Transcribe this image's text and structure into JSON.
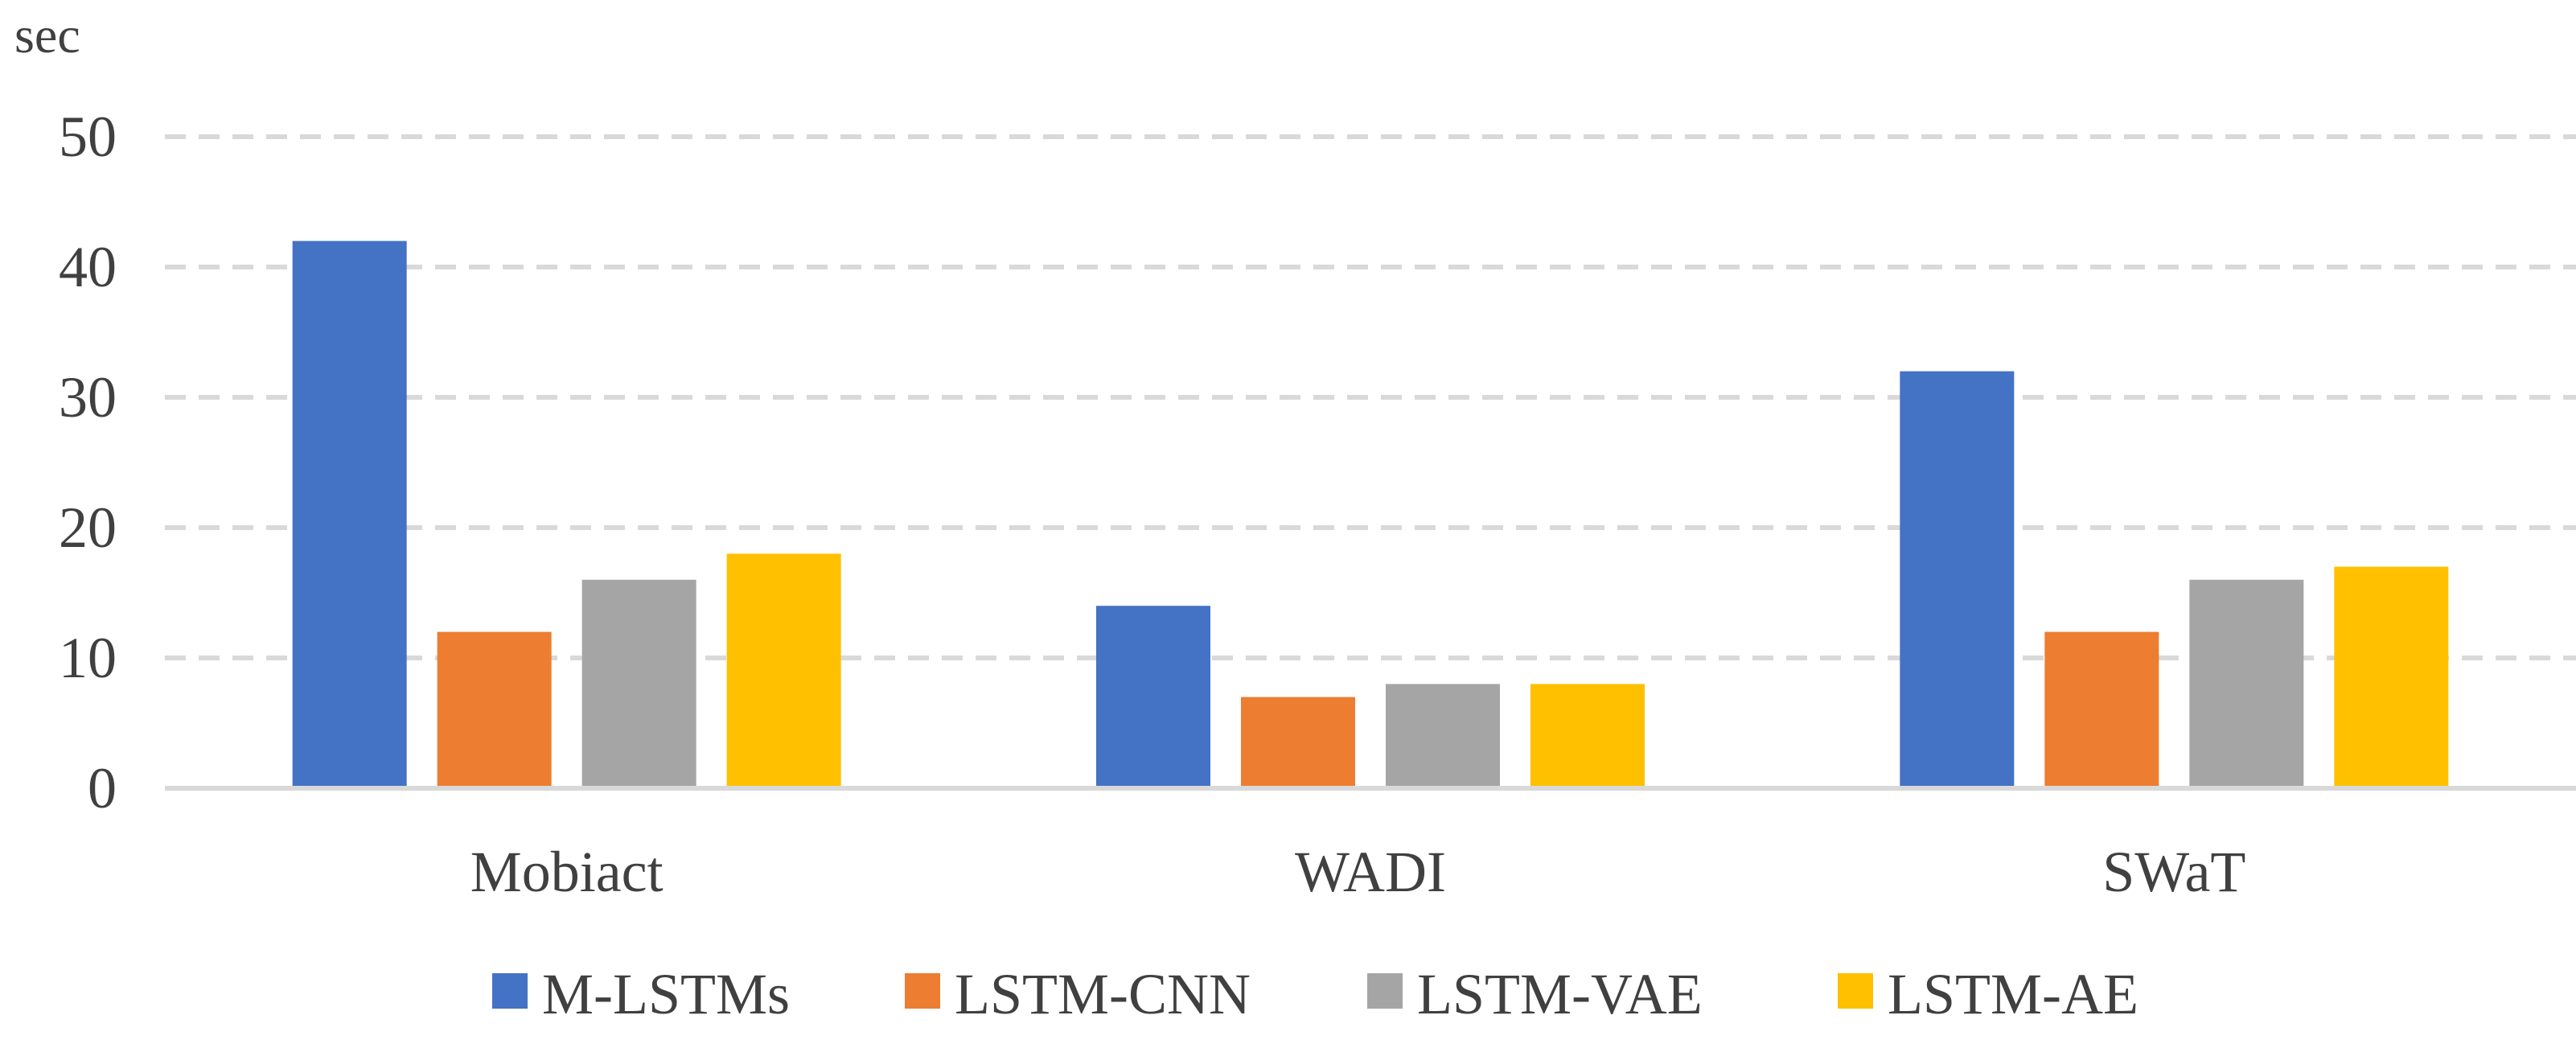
{
  "chart_data": {
    "type": "bar",
    "ylabel": "sec",
    "ylim": [
      0,
      50
    ],
    "yticks": [
      0,
      10,
      20,
      30,
      40,
      50
    ],
    "grid": true,
    "legend_position": "bottom",
    "categories": [
      "Mobiact",
      "WADI",
      "SWaT"
    ],
    "series": [
      {
        "name": "M-LSTMs",
        "color": "#4472C4",
        "values": [
          42,
          14,
          32
        ]
      },
      {
        "name": "LSTM-CNN",
        "color": "#ED7D31",
        "values": [
          12,
          7,
          12
        ]
      },
      {
        "name": "LSTM-VAE",
        "color": "#A5A5A5",
        "values": [
          16,
          8,
          16
        ]
      },
      {
        "name": "LSTM-AE",
        "color": "#FFC000",
        "values": [
          18,
          8,
          17
        ]
      }
    ]
  }
}
